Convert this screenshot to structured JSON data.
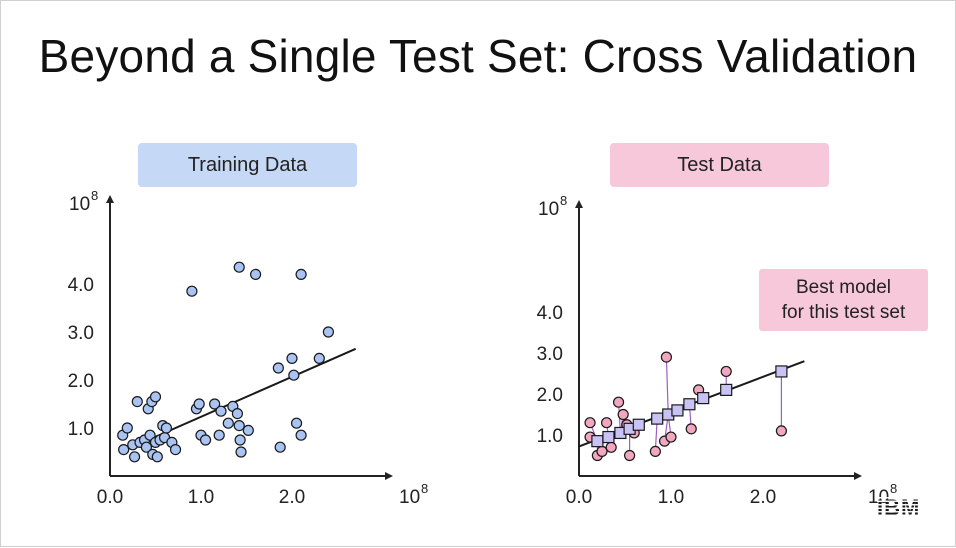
{
  "title": "Beyond a Single Test Set: Cross Validation",
  "logo": "IBM",
  "annotation": {
    "line1": "Best model",
    "line2": "for this test set"
  },
  "colors": {
    "train_point": "#a9c4f2",
    "test_point": "#f2a7c0",
    "pred_point": "#c9c2f5",
    "line": "#1a1a1a",
    "residual": "#9a5fc4",
    "train_label_bg": "#c5d8f5",
    "test_label_bg": "#f7c8da"
  },
  "chart_data": [
    {
      "type": "scatter",
      "title": "Training Data",
      "xlabel": "",
      "ylabel": "",
      "x_ticks": [
        "0.0",
        "1.0",
        "2.0"
      ],
      "x_ticks_values": [
        0,
        1,
        2
      ],
      "y_ticks": [
        "1.0",
        "2.0",
        "3.0",
        "4.0"
      ],
      "y_ticks_values": [
        1,
        2,
        3,
        4
      ],
      "x_exponent_label": "10",
      "x_exponent_sup": "8",
      "y_exponent_label": "10",
      "y_exponent_sup": "8",
      "xlim": [
        0,
        2.9
      ],
      "ylim": [
        0,
        4.9
      ],
      "fit_line": {
        "x": [
          0.18,
          2.7
        ],
        "y": [
          0.55,
          2.65
        ]
      },
      "series": [
        {
          "points": [
            [
              0.15,
              0.55
            ],
            [
              0.14,
              0.85
            ],
            [
              0.19,
              1.0
            ],
            [
              0.25,
              0.65
            ],
            [
              0.27,
              0.4
            ],
            [
              0.33,
              0.7
            ],
            [
              0.38,
              0.75
            ],
            [
              0.4,
              0.6
            ],
            [
              0.44,
              0.85
            ],
            [
              0.47,
              0.45
            ],
            [
              0.5,
              0.7
            ],
            [
              0.52,
              0.4
            ],
            [
              0.55,
              0.75
            ],
            [
              0.58,
              1.05
            ],
            [
              0.6,
              0.8
            ],
            [
              0.62,
              1.0
            ],
            [
              0.68,
              0.7
            ],
            [
              0.3,
              1.55
            ],
            [
              0.42,
              1.4
            ],
            [
              0.46,
              1.55
            ],
            [
              0.5,
              1.65
            ],
            [
              0.95,
              1.4
            ],
            [
              0.98,
              1.5
            ],
            [
              1.0,
              0.85
            ],
            [
              1.05,
              0.75
            ],
            [
              1.15,
              1.5
            ],
            [
              1.22,
              1.35
            ],
            [
              1.3,
              1.1
            ],
            [
              1.2,
              0.85
            ],
            [
              1.35,
              1.45
            ],
            [
              1.4,
              1.3
            ],
            [
              1.42,
              1.05
            ],
            [
              1.43,
              0.75
            ],
            [
              1.44,
              0.5
            ],
            [
              1.52,
              0.95
            ],
            [
              0.9,
              3.85
            ],
            [
              1.42,
              4.35
            ],
            [
              1.6,
              4.2
            ],
            [
              2.1,
              4.2
            ],
            [
              1.85,
              2.25
            ],
            [
              2.0,
              2.45
            ],
            [
              2.02,
              2.1
            ],
            [
              2.3,
              2.45
            ],
            [
              2.4,
              3.0
            ],
            [
              2.05,
              1.1
            ],
            [
              2.1,
              0.85
            ],
            [
              1.87,
              0.6
            ],
            [
              0.72,
              0.55
            ]
          ]
        }
      ]
    },
    {
      "type": "scatter",
      "title": "Test Data",
      "xlabel": "",
      "ylabel": "",
      "x_ticks": [
        "0.0",
        "1.0",
        "2.0"
      ],
      "x_ticks_values": [
        0,
        1,
        2
      ],
      "y_ticks": [
        "1.0",
        "2.0",
        "3.0",
        "4.0"
      ],
      "y_ticks_values": [
        1,
        2,
        3,
        4
      ],
      "x_exponent_label": "10",
      "x_exponent_sup": "8",
      "y_exponent_label": "10",
      "y_exponent_sup": "8",
      "xlim": [
        0,
        2.9
      ],
      "ylim": [
        0,
        4.9
      ],
      "fit_line": {
        "x": [
          0.0,
          2.45
        ],
        "y": [
          0.72,
          2.8
        ]
      },
      "series": [
        {
          "name": "actual",
          "points": [
            [
              0.12,
              1.3
            ],
            [
              0.12,
              0.95
            ],
            [
              0.2,
              0.5
            ],
            [
              0.25,
              0.6
            ],
            [
              0.3,
              1.3
            ],
            [
              0.35,
              0.7
            ],
            [
              0.43,
              1.8
            ],
            [
              0.48,
              1.5
            ],
            [
              0.52,
              1.25
            ],
            [
              0.55,
              0.5
            ],
            [
              0.6,
              1.05
            ],
            [
              0.83,
              0.6
            ],
            [
              0.95,
              2.9
            ],
            [
              0.93,
              0.85
            ],
            [
              1.0,
              0.95
            ],
            [
              1.22,
              1.15
            ],
            [
              1.3,
              2.1
            ],
            [
              1.6,
              2.55
            ],
            [
              2.2,
              1.1
            ]
          ]
        },
        {
          "name": "predicted",
          "points": [
            [
              0.2,
              0.85
            ],
            [
              0.32,
              0.95
            ],
            [
              0.45,
              1.05
            ],
            [
              0.55,
              1.15
            ],
            [
              0.65,
              1.25
            ],
            [
              0.85,
              1.4
            ],
            [
              0.97,
              1.5
            ],
            [
              1.07,
              1.6
            ],
            [
              1.2,
              1.75
            ],
            [
              1.35,
              1.9
            ],
            [
              1.6,
              2.1
            ],
            [
              2.2,
              2.55
            ]
          ]
        }
      ]
    }
  ]
}
